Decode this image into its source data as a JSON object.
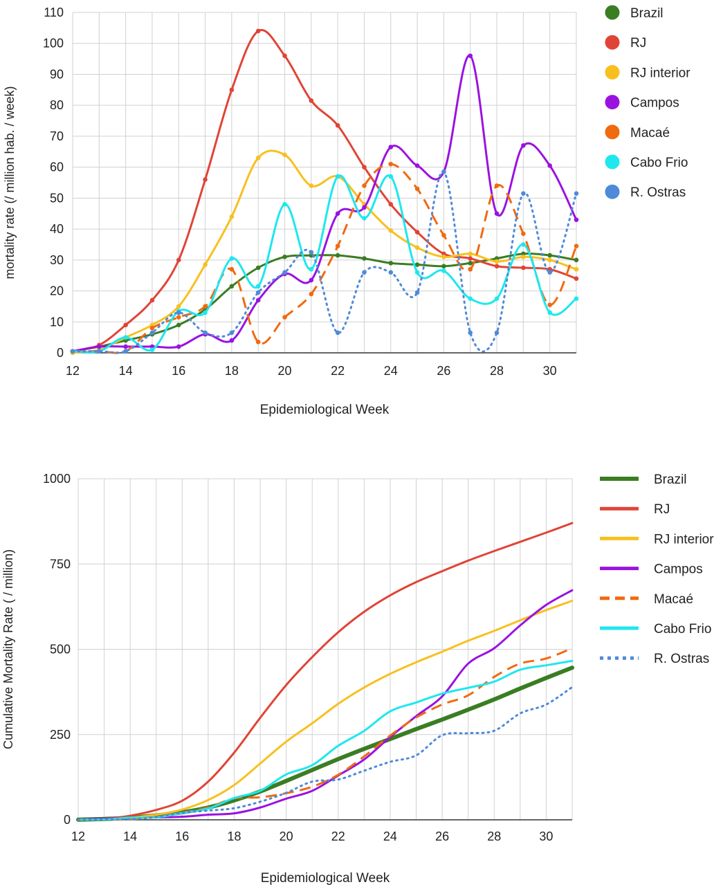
{
  "chart_data": [
    {
      "type": "line",
      "xlabel": "Epidemiological Week",
      "ylabel": "mortality rate (/ million hab. / week)",
      "xlim": [
        12,
        31
      ],
      "ylim": [
        0,
        110
      ],
      "x_ticks": [
        12,
        14,
        16,
        18,
        20,
        22,
        24,
        26,
        28,
        30
      ],
      "y_ticks": [
        0,
        10,
        20,
        30,
        40,
        50,
        60,
        70,
        80,
        90,
        100,
        110
      ],
      "grid": true,
      "legend": "right",
      "legend_style": "marker",
      "markers": true,
      "x": [
        12,
        13,
        14,
        15,
        16,
        17,
        18,
        19,
        20,
        21,
        22,
        23,
        24,
        25,
        26,
        27,
        28,
        29,
        30,
        31
      ],
      "series": [
        {
          "name": "Brazil",
          "color": "#3a7d23",
          "dash": "solid",
          "width": 3,
          "values": [
            0.5,
            2,
            4,
            6,
            9,
            14,
            21.5,
            27.5,
            31,
            31.5,
            31.5,
            30.5,
            29,
            28.5,
            28,
            29,
            30.5,
            32,
            31.5,
            30
          ]
        },
        {
          "name": "RJ",
          "color": "#e04436",
          "dash": "solid",
          "width": 3,
          "values": [
            0.5,
            2.5,
            9,
            17,
            30,
            56,
            85,
            104,
            96,
            81.5,
            73.5,
            60,
            48,
            39,
            32,
            30.5,
            28,
            27.5,
            27,
            24
          ]
        },
        {
          "name": "RJ interior",
          "color": "#f8c01f",
          "dash": "solid",
          "width": 3,
          "values": [
            0,
            1,
            5,
            9,
            15,
            28.5,
            44,
            63,
            64,
            54,
            57,
            48,
            39.5,
            34,
            31,
            32,
            29.5,
            31,
            30,
            27
          ]
        },
        {
          "name": "Campos",
          "color": "#9a12e0",
          "dash": "solid",
          "width": 3,
          "values": [
            0.5,
            2,
            2,
            2,
            2,
            6,
            4,
            17,
            25.5,
            23.5,
            45,
            47,
            66.5,
            60.5,
            58.5,
            96,
            45,
            67,
            60.5,
            43
          ]
        },
        {
          "name": "Macaé",
          "color": "#f06a0f",
          "dash": "16 9",
          "width": 3,
          "values": [
            0.5,
            0.5,
            0.5,
            8,
            11.5,
            15,
            27,
            3.5,
            11.5,
            19,
            34.5,
            54,
            61,
            53,
            38,
            27,
            54,
            38.5,
            15.5,
            34.5
          ]
        },
        {
          "name": "Cabo Frio",
          "color": "#1ee7ee",
          "dash": "solid",
          "width": 3,
          "values": [
            0.5,
            0.5,
            5,
            1,
            13.5,
            13,
            30.5,
            21.5,
            48,
            27,
            57,
            43.5,
            57,
            26,
            26.5,
            17.5,
            17.5,
            35,
            13,
            17.5
          ]
        },
        {
          "name": "R. Ostras",
          "color": "#4f8ad8",
          "dash": "2 6",
          "width": 3,
          "values": [
            0.5,
            0.5,
            0.5,
            6.5,
            13,
            6.5,
            6.5,
            19.5,
            26,
            32.5,
            6.5,
            26,
            26,
            19.5,
            58.5,
            6.5,
            6.5,
            51.5,
            26,
            51.5
          ]
        }
      ]
    },
    {
      "type": "line",
      "xlabel": "Epidemiological Week",
      "ylabel": "Cumulative Mortality Rate ( / million)",
      "xlim": [
        12,
        31
      ],
      "ylim": [
        0,
        1000
      ],
      "x_ticks": [
        12,
        14,
        16,
        18,
        20,
        22,
        24,
        26,
        28,
        30
      ],
      "y_ticks": [
        0,
        250,
        500,
        750,
        1000
      ],
      "grid": true,
      "legend": "right",
      "legend_style": "line",
      "markers": false,
      "x": [
        12,
        13,
        14,
        15,
        16,
        17,
        18,
        19,
        20,
        21,
        22,
        23,
        24,
        25,
        26,
        27,
        28,
        29,
        30,
        31
      ],
      "series": [
        {
          "name": "Brazil",
          "color": "#3a7d23",
          "dash": "solid",
          "width": 6,
          "values": [
            0.5,
            2.5,
            6,
            13,
            22,
            36,
            57,
            83,
            114,
            146,
            178,
            208,
            237,
            266,
            294,
            323,
            353,
            385,
            416,
            446
          ]
        },
        {
          "name": "RJ",
          "color": "#e04436",
          "dash": "solid",
          "width": 3,
          "values": [
            1,
            3,
            12,
            29,
            56,
            112,
            197,
            299,
            395,
            477,
            550,
            610,
            658,
            697,
            729,
            760,
            788,
            815,
            842,
            870
          ]
        },
        {
          "name": "RJ interior",
          "color": "#f8c01f",
          "dash": "solid",
          "width": 3,
          "values": [
            0.5,
            1.5,
            6,
            15,
            30,
            58,
            102,
            165,
            229,
            283,
            340,
            388,
            428,
            462,
            493,
            525,
            554,
            585,
            615,
            642
          ]
        },
        {
          "name": "Campos",
          "color": "#9a12e0",
          "dash": "solid",
          "width": 3,
          "values": [
            1,
            3,
            5,
            7,
            9,
            15,
            19,
            36,
            62,
            85,
            130,
            177,
            243,
            304,
            362,
            458,
            503,
            570,
            630,
            673
          ]
        },
        {
          "name": "Macaé",
          "color": "#f06a0f",
          "dash": "16 9",
          "width": 3,
          "values": [
            0.5,
            1,
            1.5,
            9,
            21,
            36,
            63,
            66,
            78,
            97,
            132,
            186,
            247,
            300,
            338,
            365,
            419,
            458,
            473,
            503
          ]
        },
        {
          "name": "Cabo Frio",
          "color": "#1ee7ee",
          "dash": "solid",
          "width": 3,
          "values": [
            0.5,
            1,
            6,
            7,
            20,
            33,
            64,
            85,
            133,
            160,
            217,
            261,
            318,
            344,
            370,
            387,
            405,
            440,
            453,
            466
          ]
        },
        {
          "name": "R. Ostras",
          "color": "#4f8ad8",
          "dash": "2 6",
          "width": 3,
          "values": [
            0.5,
            1,
            1.5,
            8,
            21,
            27,
            34,
            53,
            79,
            112,
            118,
            144,
            170,
            189,
            248,
            254,
            261,
            312,
            338,
            389
          ]
        }
      ]
    }
  ]
}
